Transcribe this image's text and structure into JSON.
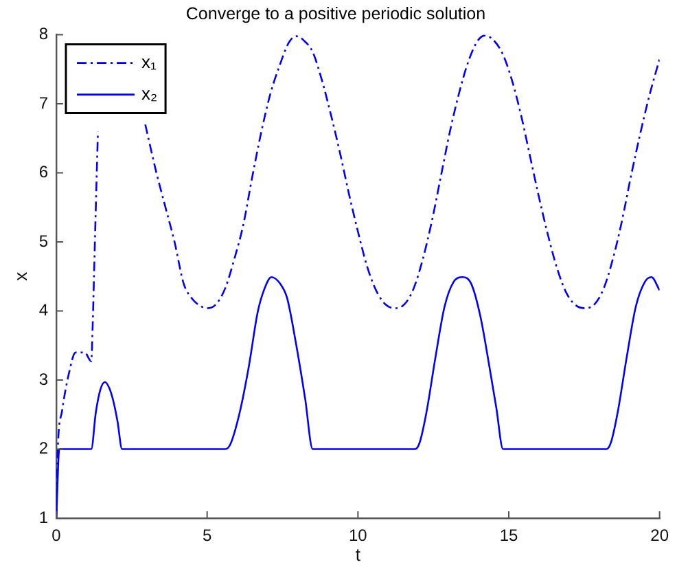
{
  "chart_data": {
    "type": "line",
    "title": "Converge to a positive periodic solution",
    "xlabel": "t",
    "ylabel": "x",
    "xlim": [
      0,
      20
    ],
    "ylim": [
      1,
      8
    ],
    "xticks": [
      0,
      5,
      10,
      15,
      20
    ],
    "yticks": [
      1,
      2,
      3,
      4,
      5,
      6,
      7,
      8
    ],
    "grid": false,
    "legend": "top left",
    "series": [
      {
        "name": "x₁",
        "color": "#0000ff",
        "line_style": "dashed",
        "x": [
          0,
          0.05,
          0.19,
          0.42,
          0.64,
          0.94,
          1.16,
          1.21,
          1.25,
          1.31,
          1.38,
          2.0,
          2.95,
          3.32,
          3.62,
          3.92,
          4.22,
          4.5,
          4.75,
          5.0,
          5.3,
          5.6,
          5.9,
          6.2,
          6.5,
          6.8,
          7.1,
          7.4,
          7.7,
          7.95,
          8.2,
          8.5,
          8.8,
          9.1,
          9.4,
          9.7,
          10.0,
          10.3,
          10.6,
          10.9,
          11.23,
          11.55,
          11.85,
          12.15,
          12.45,
          12.75,
          13.05,
          13.35,
          13.65,
          13.95,
          14.21,
          14.5,
          14.8,
          15.1,
          15.4,
          15.7,
          16.0,
          16.3,
          16.6,
          16.9,
          17.2,
          17.54,
          17.85,
          18.15,
          18.45,
          18.75,
          19.05,
          19.35,
          19.65,
          20.0
        ],
        "values": [
          1,
          2.0,
          2.55,
          3.1,
          3.4,
          3.4,
          3.27,
          3.85,
          4.5,
          5.5,
          6.6,
          null,
          6.7,
          6.0,
          5.5,
          5.0,
          4.4,
          4.18,
          4.08,
          4.04,
          4.1,
          4.33,
          4.75,
          5.25,
          5.95,
          6.6,
          7.15,
          7.55,
          7.88,
          7.98,
          7.92,
          7.75,
          7.35,
          6.85,
          6.3,
          5.7,
          5.15,
          4.65,
          4.3,
          4.1,
          4.04,
          4.1,
          4.33,
          4.75,
          5.3,
          5.95,
          6.6,
          7.15,
          7.6,
          7.9,
          7.99,
          7.92,
          7.72,
          7.35,
          6.85,
          6.25,
          5.65,
          5.1,
          4.62,
          4.27,
          4.09,
          4.04,
          4.1,
          4.33,
          4.75,
          5.3,
          5.95,
          6.55,
          7.1,
          7.65
        ]
      },
      {
        "name": "x₂",
        "color": "#0000ff",
        "line_style": "solid",
        "x": [
          0,
          0.1,
          1.16,
          1.31,
          1.46,
          1.61,
          1.76,
          1.9,
          2.03,
          2.18,
          5.6,
          5.77,
          6.08,
          6.38,
          6.68,
          6.9,
          7.13,
          7.43,
          7.65,
          7.95,
          8.25,
          8.5,
          11.9,
          12.05,
          12.27,
          12.57,
          12.87,
          13.17,
          13.47,
          13.76,
          14.06,
          14.36,
          14.59,
          14.81,
          18.24,
          18.39,
          18.61,
          18.91,
          19.21,
          19.51,
          19.73,
          20.0
        ],
        "values": [
          1,
          2.0,
          2.0,
          2.53,
          2.86,
          2.97,
          2.88,
          2.68,
          2.4,
          2.0,
          2.0,
          2.07,
          2.53,
          3.19,
          3.99,
          4.32,
          4.49,
          4.39,
          4.19,
          3.52,
          2.73,
          2.0,
          2.0,
          2.1,
          2.53,
          3.33,
          4.06,
          4.42,
          4.49,
          4.39,
          3.92,
          3.19,
          2.59,
          2.0,
          2.0,
          2.1,
          2.53,
          3.33,
          4.06,
          4.42,
          4.49,
          4.3
        ]
      }
    ]
  }
}
